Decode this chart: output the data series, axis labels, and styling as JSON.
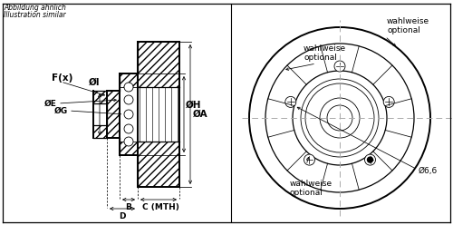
{
  "bg_color": "#ffffff",
  "line_color": "#000000",
  "title_text1": "Abbildung ähnlich",
  "title_text2": "Illustration similar",
  "label_A": "ØA",
  "label_H": "ØH",
  "label_I": "ØI",
  "label_E": "ØE",
  "label_G": "ØG",
  "label_B": "B",
  "label_C": "C (MTH)",
  "label_D": "D",
  "label_F": "F(x)",
  "label_wahlweise_top": "wahlweise\noptional",
  "label_wahlweise_mid": "wahlweise\noptional",
  "label_wahlweise_bot": "wahlweise\noptional",
  "label_d66": "Ø6,6",
  "font_size_tiny": 5.5,
  "font_size_small": 6.5,
  "font_size_label": 7.5
}
